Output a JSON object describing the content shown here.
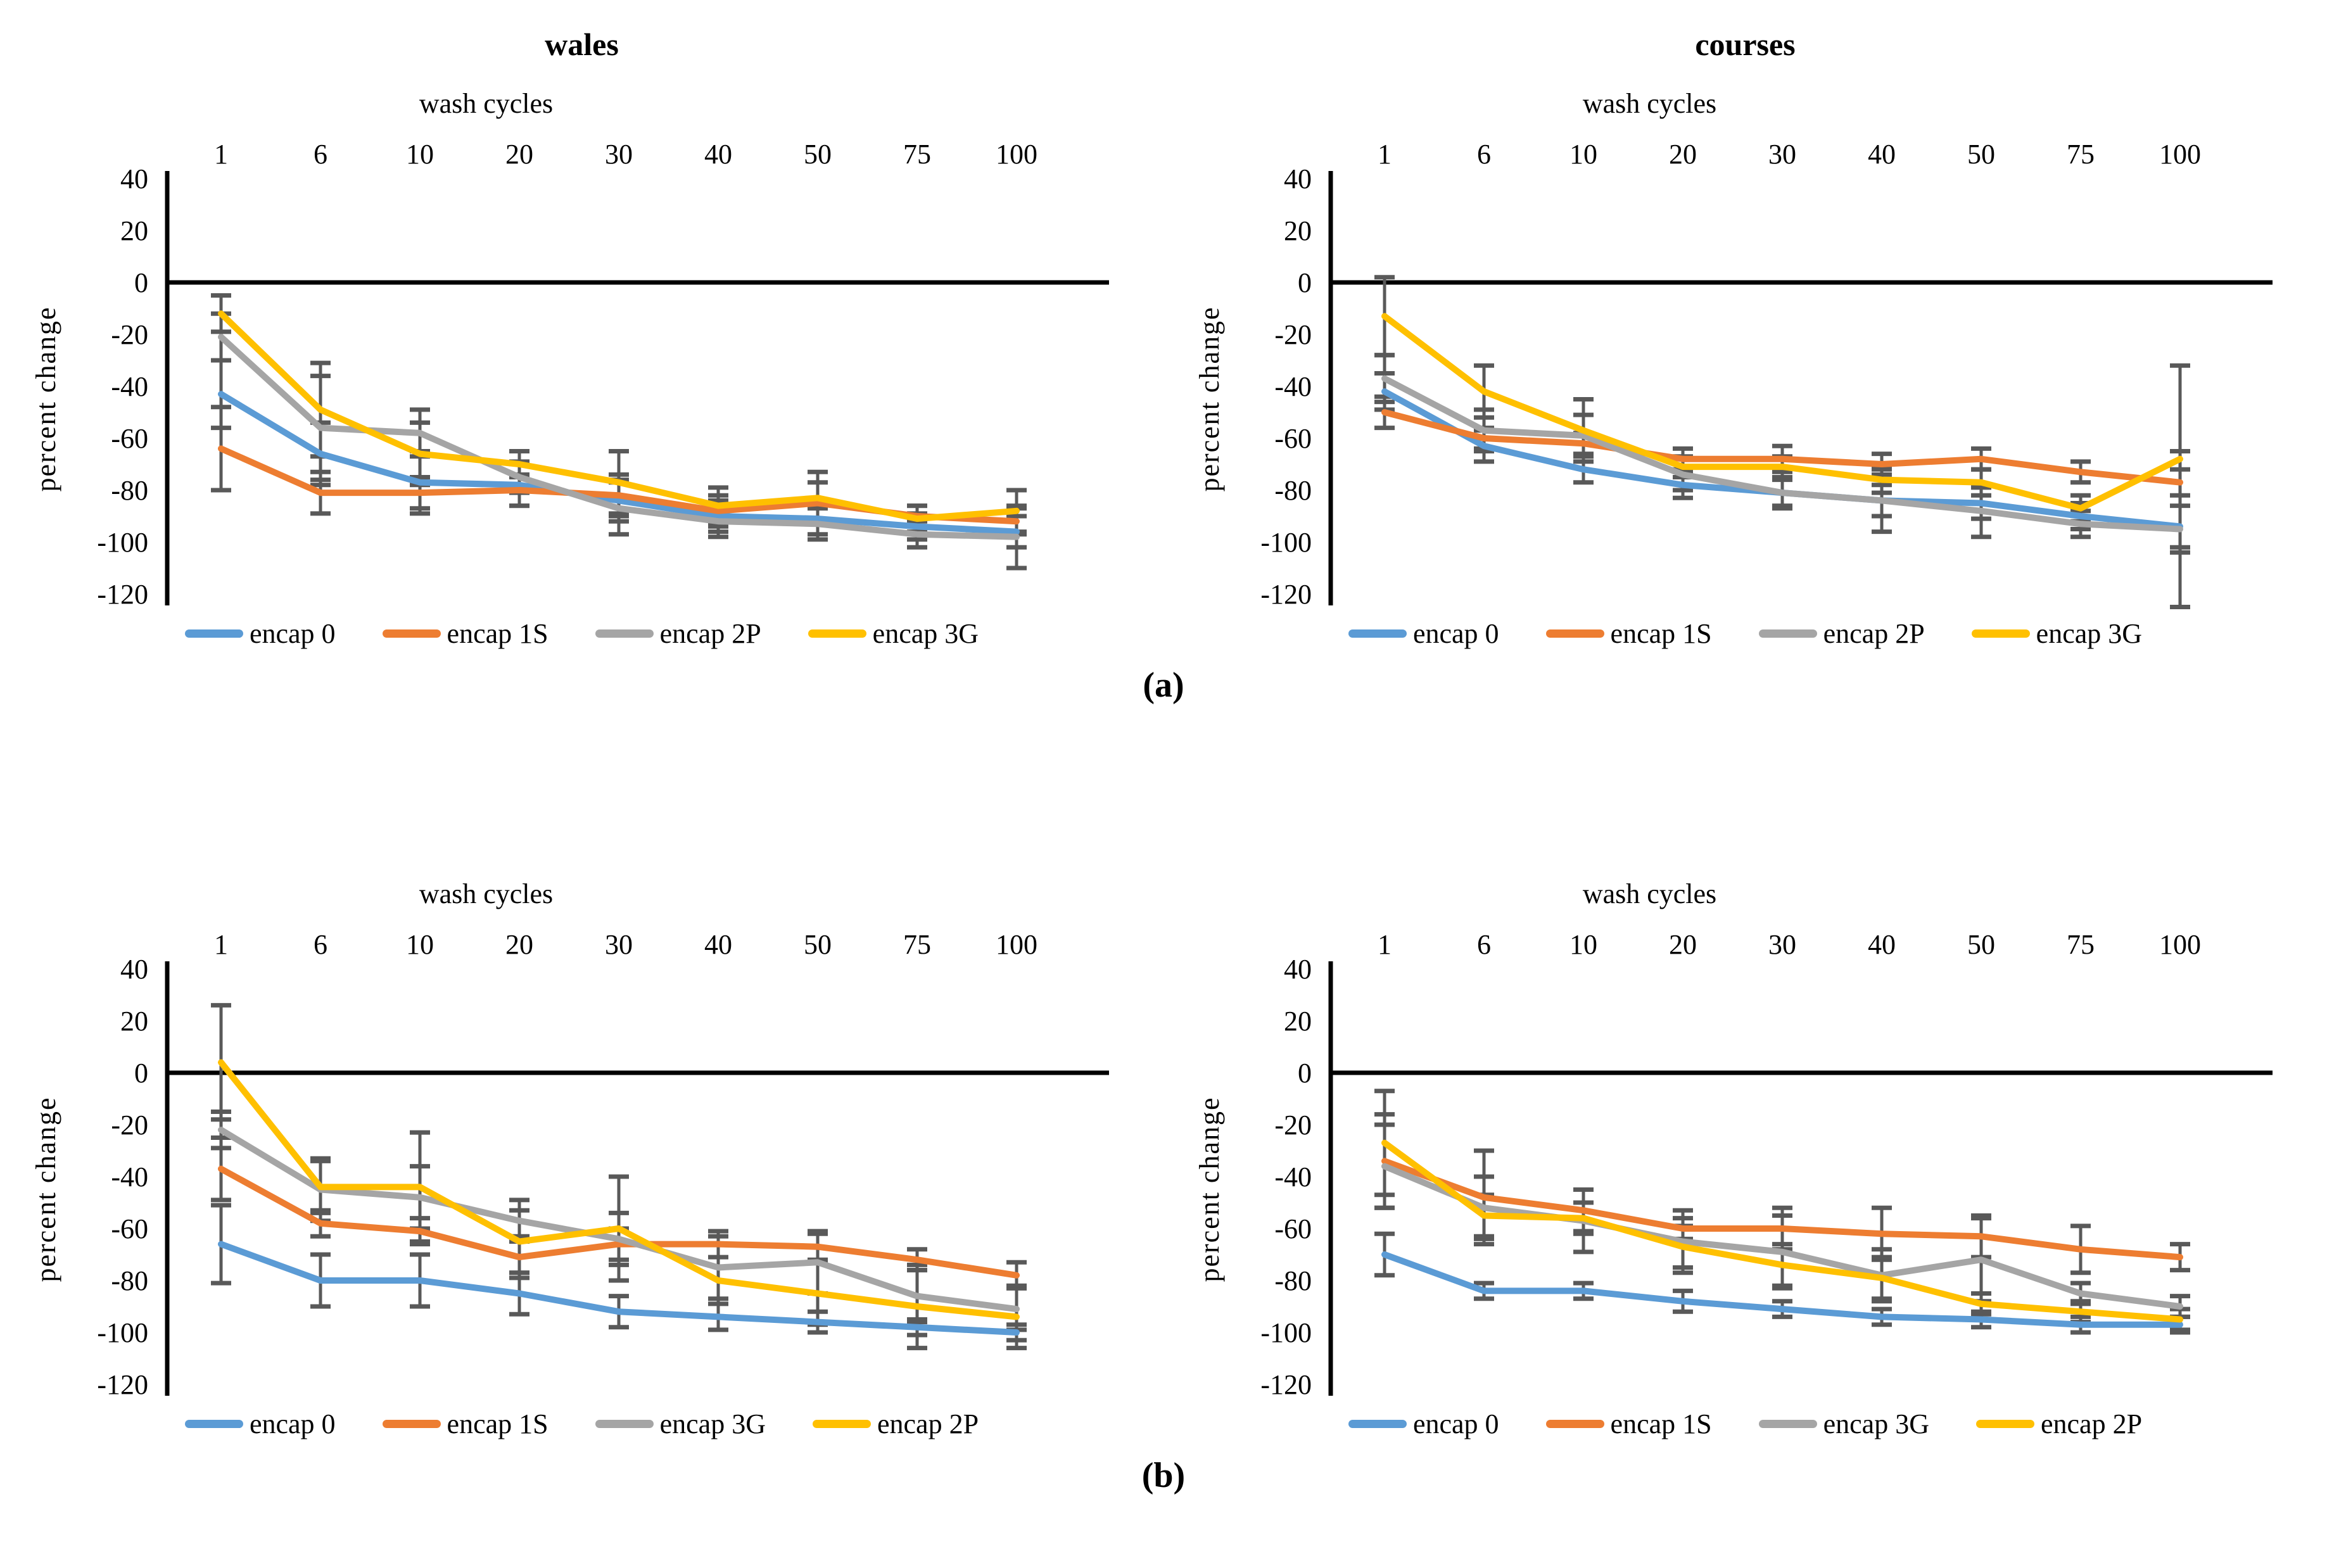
{
  "figure": {
    "panel_a_label": "(a)",
    "panel_b_label": "(b)"
  },
  "style": {
    "axis_color": "#000000",
    "error_bar_color": "#595959",
    "background": "#ffffff"
  },
  "axes_shared": {
    "xlabel": "wash cycles",
    "ylabel": "percent change",
    "x_ticks": [
      "1",
      "6",
      "10",
      "20",
      "30",
      "40",
      "50",
      "75",
      "100"
    ],
    "y_ticks": [
      40,
      20,
      0,
      -20,
      -40,
      -60,
      -80,
      -100,
      -120
    ]
  },
  "chart_data": [
    {
      "id": "wales-a",
      "panel": "a",
      "type": "line",
      "title": "wales",
      "xlabel": "wash cycles",
      "ylabel": "percent change",
      "categories": [
        "1",
        "6",
        "10",
        "20",
        "30",
        "40",
        "50",
        "75",
        "100"
      ],
      "y_ticks": [
        40,
        20,
        0,
        -20,
        -40,
        -60,
        -80,
        -100,
        -120
      ],
      "ylim": [
        -120,
        40
      ],
      "grid": false,
      "legend_position": "bottom",
      "error_bars": true,
      "series": [
        {
          "name": "encap 0",
          "color": "#5B9BD5",
          "values": [
            -43,
            -66,
            -77,
            -78,
            -84,
            -90,
            -91,
            -94,
            -96
          ],
          "err": [
            13,
            12,
            12,
            8,
            8,
            6,
            6,
            5,
            6
          ]
        },
        {
          "name": "encap 1S",
          "color": "#ED7D31",
          "values": [
            -64,
            -81,
            -81,
            -80,
            -82,
            -88,
            -85,
            -90,
            -92
          ],
          "err": [
            16,
            8,
            6,
            6,
            8,
            6,
            8,
            4,
            5
          ]
        },
        {
          "name": "encap 2P",
          "color": "#A5A5A5",
          "values": [
            -21,
            -56,
            -58,
            -75,
            -87,
            -92,
            -93,
            -97,
            -98
          ],
          "err": [
            9,
            20,
            9,
            6,
            10,
            6,
            6,
            5,
            12
          ]
        },
        {
          "name": "encap 3G",
          "color": "#FFC000",
          "values": [
            -12,
            -49,
            -66,
            -70,
            -77,
            -86,
            -83,
            -91,
            -88
          ],
          "err": [
            7,
            18,
            12,
            5,
            12,
            7,
            10,
            5,
            8
          ]
        }
      ]
    },
    {
      "id": "courses-a",
      "panel": "a",
      "type": "line",
      "title": "courses",
      "xlabel": "wash cycles",
      "ylabel": "percent change",
      "categories": [
        "1",
        "6",
        "10",
        "20",
        "30",
        "40",
        "50",
        "75",
        "100"
      ],
      "y_ticks": [
        40,
        20,
        0,
        -20,
        -40,
        -60,
        -80,
        -100,
        -120
      ],
      "ylim": [
        -120,
        40
      ],
      "grid": false,
      "legend_position": "bottom",
      "error_bars": true,
      "series": [
        {
          "name": "encap 0",
          "color": "#5B9BD5",
          "values": [
            -42,
            -63,
            -72,
            -78,
            -81,
            -84,
            -85,
            -90,
            -94
          ],
          "err": [
            7,
            6,
            5,
            5,
            5,
            6,
            6,
            5,
            8
          ]
        },
        {
          "name": "encap 1S",
          "color": "#ED7D31",
          "values": [
            -50,
            -60,
            -62,
            -68,
            -68,
            -70,
            -68,
            -73,
            -77
          ],
          "err": [
            6,
            4,
            4,
            4,
            5,
            4,
            4,
            4,
            5
          ]
        },
        {
          "name": "encap 2P",
          "color": "#A5A5A5",
          "values": [
            -37,
            -57,
            -59,
            -74,
            -81,
            -84,
            -88,
            -93,
            -95
          ],
          "err": [
            9,
            8,
            8,
            6,
            6,
            12,
            10,
            5,
            30
          ]
        },
        {
          "name": "encap 3G",
          "color": "#FFC000",
          "values": [
            -13,
            -42,
            -57,
            -71,
            -71,
            -76,
            -77,
            -87,
            -68
          ],
          "err": [
            15,
            10,
            12,
            4,
            4,
            5,
            5,
            5,
            36
          ]
        }
      ]
    },
    {
      "id": "wales-b",
      "panel": "b",
      "type": "line",
      "title": "",
      "xlabel": "wash cycles",
      "ylabel": "percent change",
      "categories": [
        "1",
        "6",
        "10",
        "20",
        "30",
        "40",
        "50",
        "75",
        "100"
      ],
      "y_ticks": [
        40,
        20,
        0,
        -20,
        -40,
        -60,
        -80,
        -100,
        -120
      ],
      "ylim": [
        -120,
        40
      ],
      "grid": false,
      "legend_position": "bottom",
      "error_bars": true,
      "series": [
        {
          "name": "encap 0",
          "color": "#5B9BD5",
          "values": [
            -66,
            -80,
            -80,
            -85,
            -92,
            -94,
            -96,
            -98,
            -100
          ],
          "err": [
            15,
            10,
            10,
            8,
            6,
            5,
            4,
            3,
            3
          ]
        },
        {
          "name": "encap 1S",
          "color": "#ED7D31",
          "values": [
            -37,
            -58,
            -61,
            -71,
            -66,
            -66,
            -67,
            -72,
            -78
          ],
          "err": [
            12,
            5,
            5,
            8,
            6,
            5,
            5,
            4,
            5
          ]
        },
        {
          "name": "encap 3G",
          "color": "#A5A5A5",
          "values": [
            -22,
            -45,
            -48,
            -57,
            -64,
            -75,
            -73,
            -86,
            -91
          ],
          "err": [
            7,
            12,
            12,
            8,
            10,
            12,
            12,
            10,
            8
          ]
        },
        {
          "name": "encap 2P",
          "color": "#FFC000",
          "values": [
            4,
            -44,
            -44,
            -65,
            -60,
            -80,
            -85,
            -90,
            -94
          ],
          "err": [
            22,
            10,
            21,
            12,
            20,
            14,
            12,
            16,
            12
          ]
        }
      ]
    },
    {
      "id": "courses-b",
      "panel": "b",
      "type": "line",
      "title": "",
      "xlabel": "wash cycles",
      "ylabel": "percent change",
      "categories": [
        "1",
        "6",
        "10",
        "20",
        "30",
        "40",
        "50",
        "75",
        "100"
      ],
      "y_ticks": [
        40,
        20,
        0,
        -20,
        -40,
        -60,
        -80,
        -100,
        -120
      ],
      "ylim": [
        -120,
        40
      ],
      "grid": false,
      "legend_position": "bottom",
      "error_bars": true,
      "series": [
        {
          "name": "encap 0",
          "color": "#5B9BD5",
          "values": [
            -70,
            -84,
            -84,
            -88,
            -91,
            -94,
            -95,
            -97,
            -97
          ],
          "err": [
            8,
            3,
            3,
            4,
            3,
            3,
            3,
            3,
            3
          ]
        },
        {
          "name": "encap 1S",
          "color": "#ED7D31",
          "values": [
            -34,
            -48,
            -53,
            -60,
            -60,
            -62,
            -63,
            -68,
            -71
          ],
          "err": [
            18,
            18,
            8,
            4,
            8,
            10,
            8,
            9,
            5
          ]
        },
        {
          "name": "encap 3G",
          "color": "#A5A5A5",
          "values": [
            -36,
            -52,
            -57,
            -65,
            -69,
            -78,
            -72,
            -85,
            -90
          ],
          "err": [
            16,
            12,
            12,
            12,
            14,
            10,
            16,
            4,
            4
          ]
        },
        {
          "name": "encap 2P",
          "color": "#FFC000",
          "values": [
            -27,
            -55,
            -56,
            -67,
            -74,
            -79,
            -89,
            -92,
            -95
          ],
          "err": [
            20,
            8,
            6,
            8,
            8,
            8,
            4,
            4,
            4
          ]
        }
      ]
    }
  ]
}
